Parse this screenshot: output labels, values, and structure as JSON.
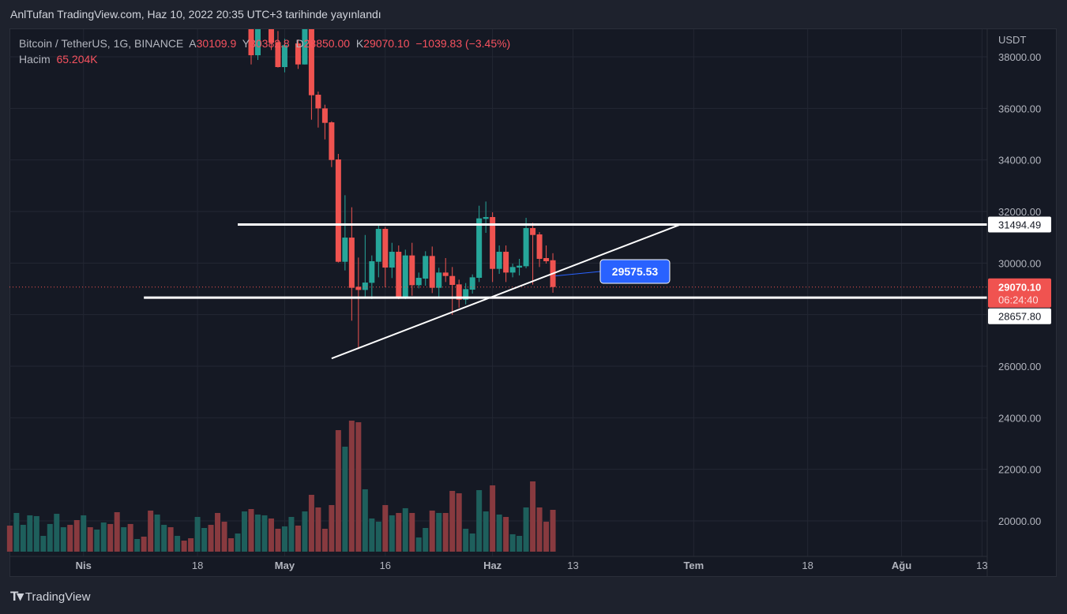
{
  "header": {
    "published": "AnlTufan TradingView.com, Haz 10, 2022 20:35 UTC+3 tarihinde yayınlandı"
  },
  "legend": {
    "symbol": "Bitcoin / TetherUS, 1G, BINANCE",
    "open_label": "A",
    "open": "30109.9",
    "high_label": "Y",
    "high": "30382.8",
    "low_label": "D",
    "low": "28850.00",
    "close_label": "K",
    "close": "29070.10",
    "change": "−1039.83 (−3.45%)",
    "volume_label": "Hacim",
    "volume": "65.204K"
  },
  "price_axis": {
    "currency": "USDT",
    "ticks": [
      "38000.00",
      "36000.00",
      "34000.00",
      "32000.00",
      "30000.00",
      "26000.00",
      "24000.00",
      "22000.00",
      "20000.00"
    ],
    "tick_values": [
      38000,
      36000,
      34000,
      32000,
      30000,
      28000,
      26000,
      24000,
      22000,
      20000
    ],
    "current_price": "29070.10",
    "countdown": "06:24:40",
    "line_labels": [
      "31494.49",
      "28657.80"
    ]
  },
  "time_axis": {
    "labels": [
      {
        "text": "Nis",
        "date": "2022-04-01"
      },
      {
        "text": "18",
        "date": "2022-04-18"
      },
      {
        "text": "May",
        "date": "2022-05-01"
      },
      {
        "text": "16",
        "date": "2022-05-16"
      },
      {
        "text": "Haz",
        "date": "2022-06-01"
      },
      {
        "text": "13",
        "date": "2022-06-13"
      },
      {
        "text": "Tem",
        "date": "2022-07-01"
      },
      {
        "text": "18",
        "date": "2022-07-18"
      },
      {
        "text": "Ağu",
        "date": "2022-08-01"
      },
      {
        "text": "13",
        "date": "2022-08-13"
      }
    ]
  },
  "drawings": {
    "resistance": {
      "price": 31494.49,
      "from": "2022-04-24"
    },
    "support": {
      "price": 28657.8,
      "from": "2022-04-10"
    },
    "trendline": {
      "from": [
        "2022-05-08",
        26300
      ],
      "to": [
        "2022-06-29",
        31494.49
      ]
    },
    "price_note": {
      "text": "29575.53",
      "anchor": [
        "2022-06-10",
        29500
      ],
      "color": "#2962ff"
    }
  },
  "colors": {
    "up": "#26a69a",
    "down": "#ef5350",
    "background": "#151924",
    "current_price": "#f05350"
  },
  "footer": {
    "brand": "TradingView"
  },
  "chart_data": {
    "type": "candlestick",
    "ylim": [
      19000,
      39300
    ],
    "grid": true,
    "candles": [
      [
        "2022-04-26",
        39500,
        40000,
        37704,
        38061
      ],
      [
        "2022-04-27",
        38061,
        39800,
        37878,
        39500
      ],
      [
        "2022-04-28",
        39750,
        40500,
        39694,
        40300
      ],
      [
        "2022-04-29",
        39600,
        39700,
        38265,
        38551
      ],
      [
        "2022-04-30",
        38571,
        39000,
        37582,
        37602
      ],
      [
        "2022-05-01",
        37602,
        38700,
        37398,
        38449
      ],
      [
        "2022-05-02",
        39800,
        40300,
        39700,
        40200
      ],
      [
        "2022-05-03",
        38520,
        38673,
        37531,
        37704
      ],
      [
        "2022-05-04",
        37704,
        39400,
        37700,
        39163
      ],
      [
        "2022-05-05",
        39163,
        39300,
        35561,
        36510
      ],
      [
        "2022-05-06",
        36530,
        36653,
        35255,
        35999
      ],
      [
        "2022-05-07",
        35999,
        36143,
        34796,
        35438
      ],
      [
        "2022-05-08",
        35459,
        35500,
        33724,
        33999
      ],
      [
        "2022-05-09",
        34019,
        34234,
        30020,
        30050
      ],
      [
        "2022-05-10",
        30050,
        32632,
        29714,
        30988
      ],
      [
        "2022-05-11",
        30988,
        32163,
        27764,
        29040
      ],
      [
        "2022-05-12",
        29081,
        30214,
        26663,
        28958
      ],
      [
        "2022-05-13",
        28958,
        31090,
        28704,
        29244
      ],
      [
        "2022-05-14",
        29234,
        30296,
        28602,
        30071
      ],
      [
        "2022-05-15",
        30051,
        31449,
        29448,
        31326
      ],
      [
        "2022-05-16",
        31326,
        31400,
        29061,
        29826
      ],
      [
        "2022-05-17",
        29826,
        30786,
        29418,
        30438
      ],
      [
        "2022-05-18",
        30438,
        30683,
        28600,
        28632
      ],
      [
        "2022-05-19",
        28632,
        30520,
        28600,
        30296
      ],
      [
        "2022-05-20",
        30296,
        30786,
        28734,
        29142
      ],
      [
        "2022-05-21",
        29142,
        29632,
        29020,
        29428
      ],
      [
        "2022-05-22",
        29397,
        30459,
        29122,
        30275
      ],
      [
        "2022-05-23",
        30275,
        30642,
        28836,
        29040
      ],
      [
        "2022-05-24",
        29040,
        29816,
        28632,
        29632
      ],
      [
        "2022-05-25",
        29632,
        30194,
        29265,
        29499
      ],
      [
        "2022-05-26",
        29499,
        29847,
        27990,
        29153
      ],
      [
        "2022-05-27",
        29173,
        29357,
        28265,
        28581
      ],
      [
        "2022-05-28",
        28581,
        29224,
        28398,
        28989
      ],
      [
        "2022-05-29",
        28969,
        29561,
        28816,
        29448
      ],
      [
        "2022-05-30",
        29428,
        32224,
        29265,
        31734
      ],
      [
        "2022-05-31",
        31714,
        32387,
        31173,
        31785
      ],
      [
        "2022-06-01",
        31785,
        31969,
        29265,
        29775
      ],
      [
        "2022-06-02",
        29775,
        30683,
        29581,
        30438
      ],
      [
        "2022-06-03",
        30438,
        30683,
        29265,
        29632
      ],
      [
        "2022-06-04",
        29632,
        29979,
        29448,
        29847
      ],
      [
        "2022-06-05",
        29826,
        30163,
        29520,
        29898
      ],
      [
        "2022-06-06",
        29877,
        31755,
        29800,
        31357
      ],
      [
        "2022-06-07",
        31357,
        31561,
        29163,
        31090
      ],
      [
        "2022-06-08",
        31112,
        31200,
        29847,
        30163
      ],
      [
        "2022-06-09",
        30194,
        30683,
        29980,
        30071
      ],
      [
        "2022-06-10",
        30109.9,
        30382.8,
        28850,
        29070.1
      ]
    ],
    "volume_unit": "K",
    "volume": [
      [
        "2022-03-21",
        40.6,
        "d"
      ],
      [
        "2022-03-22",
        60.3,
        "u"
      ],
      [
        "2022-03-23",
        41.8,
        "u"
      ],
      [
        "2022-03-24",
        56.6,
        "u"
      ],
      [
        "2022-03-25",
        55.4,
        "u"
      ],
      [
        "2022-03-26",
        24.6,
        "u"
      ],
      [
        "2022-03-27",
        43.1,
        "u"
      ],
      [
        "2022-03-28",
        59.0,
        "u"
      ],
      [
        "2022-03-29",
        38.1,
        "u"
      ],
      [
        "2022-03-30",
        41.8,
        "d"
      ],
      [
        "2022-03-31",
        49.2,
        "d"
      ],
      [
        "2022-04-01",
        56.6,
        "u"
      ],
      [
        "2022-04-02",
        38.1,
        "d"
      ],
      [
        "2022-04-03",
        34.4,
        "u"
      ],
      [
        "2022-04-04",
        45.5,
        "u"
      ],
      [
        "2022-04-05",
        43.1,
        "d"
      ],
      [
        "2022-04-06",
        61.5,
        "d"
      ],
      [
        "2022-04-07",
        38.1,
        "u"
      ],
      [
        "2022-04-08",
        43.1,
        "d"
      ],
      [
        "2022-04-09",
        19.7,
        "u"
      ],
      [
        "2022-04-10",
        23.4,
        "d"
      ],
      [
        "2022-04-11",
        64.0,
        "d"
      ],
      [
        "2022-04-12",
        57.8,
        "u"
      ],
      [
        "2022-04-13",
        41.8,
        "u"
      ],
      [
        "2022-04-14",
        38.1,
        "d"
      ],
      [
        "2022-04-15",
        24.6,
        "u"
      ],
      [
        "2022-04-16",
        17.2,
        "d"
      ],
      [
        "2022-04-17",
        20.9,
        "d"
      ],
      [
        "2022-04-18",
        54.1,
        "u"
      ],
      [
        "2022-04-19",
        36.9,
        "u"
      ],
      [
        "2022-04-20",
        41.8,
        "d"
      ],
      [
        "2022-04-21",
        60.3,
        "d"
      ],
      [
        "2022-04-22",
        46.7,
        "d"
      ],
      [
        "2022-04-23",
        20.9,
        "d"
      ],
      [
        "2022-04-24",
        28.3,
        "u"
      ],
      [
        "2022-04-25",
        62.7,
        "u"
      ],
      [
        "2022-04-26",
        66.4,
        "d"
      ],
      [
        "2022-04-27",
        57.8,
        "u"
      ],
      [
        "2022-04-28",
        56.6,
        "u"
      ],
      [
        "2022-04-29",
        51.7,
        "d"
      ],
      [
        "2022-04-30",
        35.7,
        "d"
      ],
      [
        "2022-05-01",
        39.4,
        "u"
      ],
      [
        "2022-05-02",
        54.1,
        "u"
      ],
      [
        "2022-05-03",
        40.6,
        "d"
      ],
      [
        "2022-05-04",
        62.7,
        "u"
      ],
      [
        "2022-05-05",
        88.6,
        "d"
      ],
      [
        "2022-05-06",
        68.9,
        "d"
      ],
      [
        "2022-05-07",
        35.7,
        "d"
      ],
      [
        "2022-05-08",
        72.6,
        "d"
      ],
      [
        "2022-05-09",
        189.4,
        "d"
      ],
      [
        "2022-05-10",
        163.6,
        "u"
      ],
      [
        "2022-05-11",
        204.2,
        "d"
      ],
      [
        "2022-05-12",
        201.7,
        "d"
      ],
      [
        "2022-05-13",
        97.2,
        "u"
      ],
      [
        "2022-05-14",
        51.7,
        "u"
      ],
      [
        "2022-05-15",
        46.7,
        "u"
      ],
      [
        "2022-05-16",
        72.6,
        "d"
      ],
      [
        "2022-05-17",
        56.6,
        "u"
      ],
      [
        "2022-05-18",
        60.3,
        "d"
      ],
      [
        "2022-05-19",
        67.7,
        "u"
      ],
      [
        "2022-05-20",
        60.3,
        "d"
      ],
      [
        "2022-05-21",
        22.1,
        "u"
      ],
      [
        "2022-05-22",
        36.9,
        "u"
      ],
      [
        "2022-05-23",
        64.0,
        "d"
      ],
      [
        "2022-05-24",
        60.3,
        "u"
      ],
      [
        "2022-05-25",
        60.3,
        "d"
      ],
      [
        "2022-05-26",
        94.7,
        "d"
      ],
      [
        "2022-05-27",
        91.0,
        "d"
      ],
      [
        "2022-05-28",
        35.7,
        "u"
      ],
      [
        "2022-05-29",
        28.3,
        "u"
      ],
      [
        "2022-05-30",
        95.9,
        "u"
      ],
      [
        "2022-05-31",
        62.7,
        "u"
      ],
      [
        "2022-06-01",
        103.3,
        "d"
      ],
      [
        "2022-06-02",
        57.8,
        "u"
      ],
      [
        "2022-06-03",
        54.1,
        "d"
      ],
      [
        "2022-06-04",
        27.1,
        "u"
      ],
      [
        "2022-06-05",
        24.6,
        "u"
      ],
      [
        "2022-06-06",
        68.9,
        "u"
      ],
      [
        "2022-06-07",
        109.5,
        "d"
      ],
      [
        "2022-06-08",
        68.9,
        "d"
      ],
      [
        "2022-06-09",
        46.7,
        "d"
      ],
      [
        "2022-06-10",
        65.2,
        "d"
      ]
    ]
  }
}
